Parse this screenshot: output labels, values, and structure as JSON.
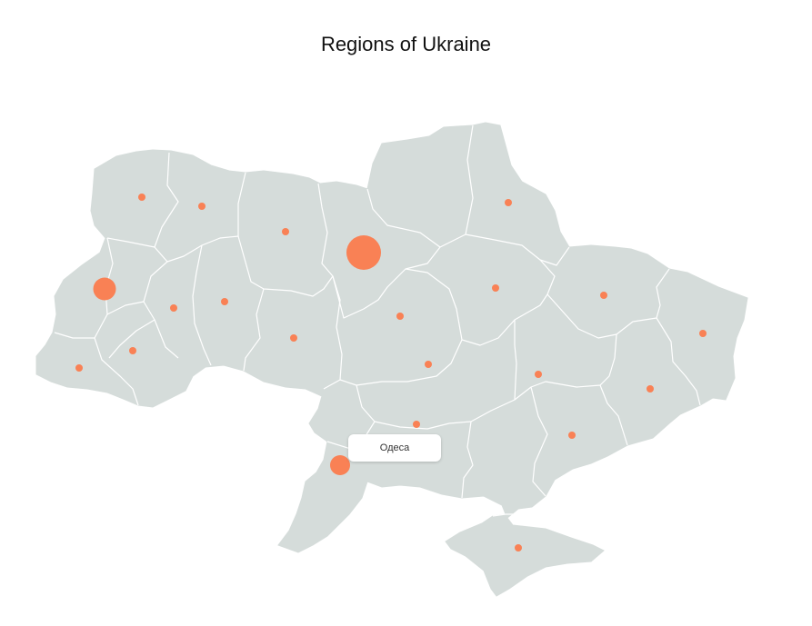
{
  "map": {
    "title": "Regions of Ukraine",
    "land_color": "#d5dcda",
    "border_color": "#ffffff",
    "marker_color": "#f98155",
    "regions": [
      {
        "name": "Одеса",
        "size": "large"
      },
      {
        "name": "",
        "size": "large"
      },
      {
        "name": "",
        "size": "large"
      },
      {
        "name": "",
        "size": "small"
      }
    ]
  },
  "tooltip": {
    "label": "Одеса"
  }
}
